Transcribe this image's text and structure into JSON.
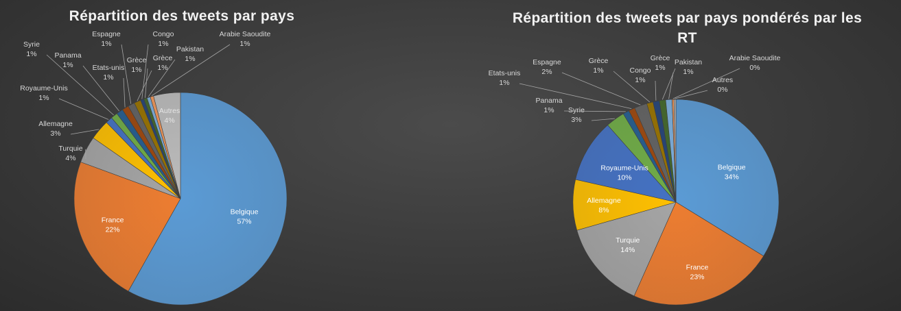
{
  "chart_data": [
    {
      "type": "pie",
      "title": "Répartition des tweets par pays",
      "slices": [
        {
          "name": "Belgique",
          "value": 57,
          "label": "57%",
          "color": "#5b9bd5"
        },
        {
          "name": "France",
          "value": 22,
          "label": "22%",
          "color": "#ed7d31"
        },
        {
          "name": "Turquie",
          "value": 4,
          "label": "4%",
          "color": "#a5a5a5"
        },
        {
          "name": "Allemagne",
          "value": 3,
          "label": "3%",
          "color": "#ffc000"
        },
        {
          "name": "Royaume-Unis",
          "value": 1,
          "label": "1%",
          "color": "#4472c4"
        },
        {
          "name": "Syrie",
          "value": 1,
          "label": "1%",
          "color": "#70ad47"
        },
        {
          "name": "Panama",
          "value": 1,
          "label": "1%",
          "color": "#255e91"
        },
        {
          "name": "Etats-unis",
          "value": 1,
          "label": "1%",
          "color": "#9e480e"
        },
        {
          "name": "Espagne",
          "value": 1,
          "label": "1%",
          "color": "#636363"
        },
        {
          "name": "Grèce",
          "value": 1,
          "label": "1%",
          "color": "#997300"
        },
        {
          "name": "Congo",
          "value": 0.5,
          "label": "1%",
          "color": "#264478"
        },
        {
          "name": "Grèce",
          "value": 0.5,
          "label": "1%",
          "color": "#43682b"
        },
        {
          "name": "Pakistan",
          "value": 0.5,
          "label": "1%",
          "color": "#7cafdd"
        },
        {
          "name": "Arabie Saoudite",
          "value": 0.5,
          "label": "1%",
          "color": "#f1975a"
        },
        {
          "name": "Autres",
          "value": 4,
          "label": "4%",
          "color": "#bcbcbc"
        }
      ]
    },
    {
      "type": "pie",
      "title": "Répartition des tweets par pays pondérés par les RT",
      "slices": [
        {
          "name": "Belgique",
          "value": 34,
          "label": "34%",
          "color": "#5b9bd5"
        },
        {
          "name": "France",
          "value": 23,
          "label": "23%",
          "color": "#ed7d31"
        },
        {
          "name": "Turquie",
          "value": 14,
          "label": "14%",
          "color": "#a5a5a5"
        },
        {
          "name": "Allemagne",
          "value": 8,
          "label": "8%",
          "color": "#ffc000"
        },
        {
          "name": "Royaume-Unis",
          "value": 10,
          "label": "10%",
          "color": "#4472c4"
        },
        {
          "name": "Syrie",
          "value": 3,
          "label": "3%",
          "color": "#70ad47"
        },
        {
          "name": "Panama",
          "value": 1,
          "label": "1%",
          "color": "#255e91"
        },
        {
          "name": "Etats-unis",
          "value": 1,
          "label": "1%",
          "color": "#9e480e"
        },
        {
          "name": "Espagne",
          "value": 2,
          "label": "2%",
          "color": "#636363"
        },
        {
          "name": "Grèce",
          "value": 1,
          "label": "1%",
          "color": "#997300"
        },
        {
          "name": "Congo",
          "value": 1,
          "label": "1%",
          "color": "#264478"
        },
        {
          "name": "Grèce",
          "value": 1,
          "label": "1%",
          "color": "#43682b"
        },
        {
          "name": "Pakistan",
          "value": 1,
          "label": "1%",
          "color": "#7cafdd"
        },
        {
          "name": "Arabie Saoudite",
          "value": 0.3,
          "label": "0%",
          "color": "#f1975a"
        },
        {
          "name": "Autres",
          "value": 0.3,
          "label": "0%",
          "color": "#bcbcbc"
        }
      ]
    }
  ]
}
